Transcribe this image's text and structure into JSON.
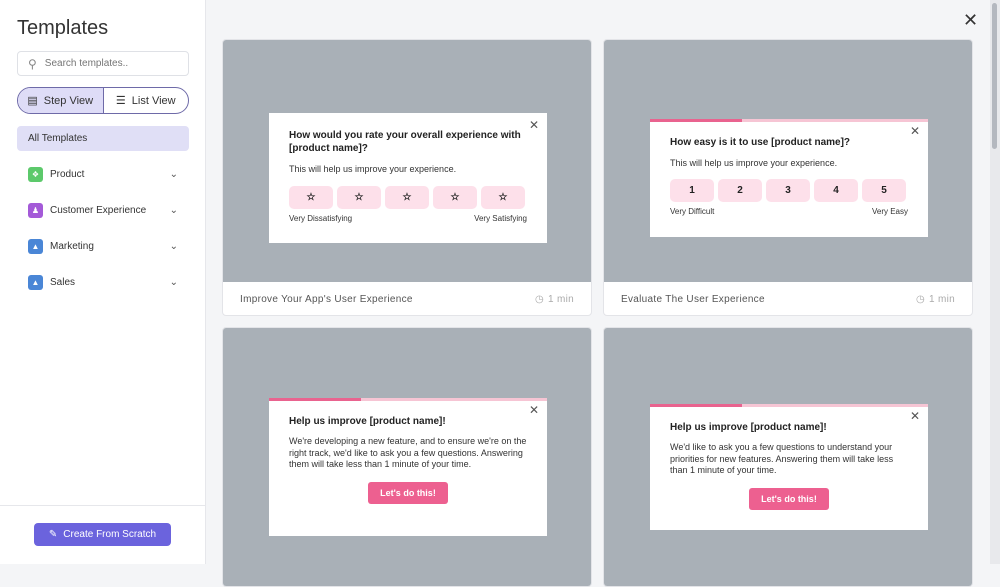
{
  "sidebar": {
    "title": "Templates",
    "search_placeholder": "Search templates..",
    "step_view": "Step View",
    "list_view": "List View",
    "all_templates": "All Templates",
    "categories": [
      {
        "label": "Product",
        "color": "#5cc96b"
      },
      {
        "label": "Customer Experience",
        "color": "#a45ad8"
      },
      {
        "label": "Marketing",
        "color": "#4a86d6"
      },
      {
        "label": "Sales",
        "color": "#4a86d6"
      }
    ],
    "create_label": "Create From Scratch"
  },
  "cards": [
    {
      "name": "Improve Your App's User Experience",
      "time": "1 min",
      "question": "How would you rate your overall experience with [product name]?",
      "sub": "This will help us improve your experience.",
      "low": "Very Dissatisfying",
      "high": "Very Satisfying"
    },
    {
      "name": "Evaluate The User Experience",
      "time": "1 min",
      "question": "How easy is it to use [product name]?",
      "sub": "This will help us improve your experience.",
      "options": [
        "1",
        "2",
        "3",
        "4",
        "5"
      ],
      "low": "Very Difficult",
      "high": "Very Easy"
    },
    {
      "question": "Help us improve [product name]!",
      "sub": "We're developing a new feature, and to ensure we're on the right track, we'd like to ask you a few questions. Answering them will take less than 1 minute of your time.",
      "cta": "Let's do this!"
    },
    {
      "question": "Help us improve [product name]!",
      "sub": "We'd like to ask you a few questions to understand your priorities for new features. Answering them will take less than 1 minute of your time.",
      "cta": "Let's do this!"
    }
  ]
}
